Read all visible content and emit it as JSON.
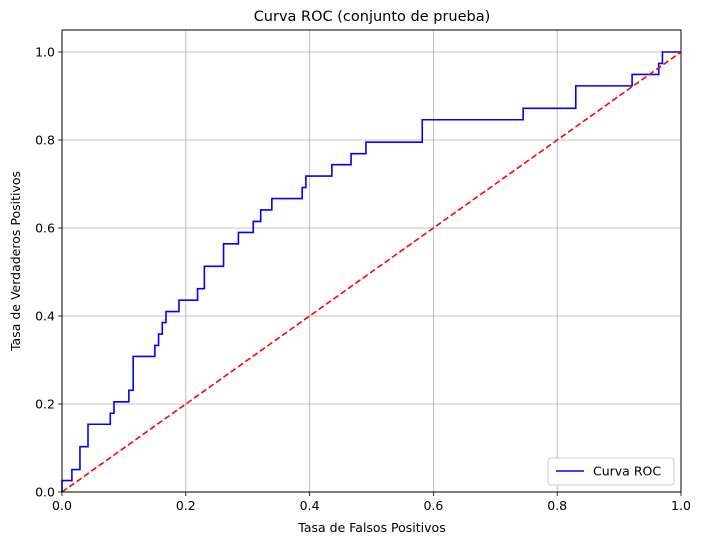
{
  "chart_data": {
    "type": "line",
    "title": "Curva ROC (conjunto de prueba)",
    "xlabel": "Tasa de Falsos Positivos",
    "ylabel": "Tasa de Verdaderos Positivos",
    "xlim": [
      0.0,
      1.0
    ],
    "ylim": [
      0.0,
      1.05
    ],
    "x_ticks": [
      "0.0",
      "0.2",
      "0.4",
      "0.6",
      "0.8",
      "1.0"
    ],
    "y_ticks": [
      "0.0",
      "0.2",
      "0.4",
      "0.6",
      "0.8",
      "1.0"
    ],
    "grid": true,
    "legend_position": "lower-right",
    "series": [
      {
        "name": "Curva ROC",
        "color": "#0000ff",
        "style": "solid",
        "step": true,
        "points": [
          [
            0.0,
            0.0
          ],
          [
            0.0,
            0.026
          ],
          [
            0.016,
            0.026
          ],
          [
            0.016,
            0.051
          ],
          [
            0.029,
            0.051
          ],
          [
            0.029,
            0.103
          ],
          [
            0.042,
            0.103
          ],
          [
            0.042,
            0.154
          ],
          [
            0.078,
            0.154
          ],
          [
            0.078,
            0.179
          ],
          [
            0.084,
            0.179
          ],
          [
            0.084,
            0.205
          ],
          [
            0.108,
            0.205
          ],
          [
            0.108,
            0.231
          ],
          [
            0.115,
            0.231
          ],
          [
            0.115,
            0.308
          ],
          [
            0.15,
            0.308
          ],
          [
            0.15,
            0.333
          ],
          [
            0.156,
            0.333
          ],
          [
            0.156,
            0.359
          ],
          [
            0.162,
            0.359
          ],
          [
            0.162,
            0.385
          ],
          [
            0.168,
            0.385
          ],
          [
            0.168,
            0.41
          ],
          [
            0.189,
            0.41
          ],
          [
            0.189,
            0.436
          ],
          [
            0.219,
            0.436
          ],
          [
            0.219,
            0.462
          ],
          [
            0.23,
            0.462
          ],
          [
            0.23,
            0.513
          ],
          [
            0.261,
            0.513
          ],
          [
            0.261,
            0.564
          ],
          [
            0.285,
            0.564
          ],
          [
            0.285,
            0.59
          ],
          [
            0.309,
            0.59
          ],
          [
            0.309,
            0.615
          ],
          [
            0.321,
            0.615
          ],
          [
            0.321,
            0.641
          ],
          [
            0.339,
            0.641
          ],
          [
            0.339,
            0.667
          ],
          [
            0.388,
            0.667
          ],
          [
            0.388,
            0.692
          ],
          [
            0.394,
            0.692
          ],
          [
            0.394,
            0.718
          ],
          [
            0.436,
            0.718
          ],
          [
            0.436,
            0.744
          ],
          [
            0.467,
            0.744
          ],
          [
            0.467,
            0.769
          ],
          [
            0.491,
            0.769
          ],
          [
            0.491,
            0.795
          ],
          [
            0.582,
            0.795
          ],
          [
            0.582,
            0.846
          ],
          [
            0.745,
            0.846
          ],
          [
            0.745,
            0.872
          ],
          [
            0.83,
            0.872
          ],
          [
            0.83,
            0.923
          ],
          [
            0.921,
            0.923
          ],
          [
            0.921,
            0.949
          ],
          [
            0.964,
            0.949
          ],
          [
            0.964,
            0.974
          ],
          [
            0.97,
            0.974
          ],
          [
            0.97,
            1.0
          ],
          [
            1.0,
            1.0
          ]
        ]
      },
      {
        "name": "",
        "color": "#ff0000",
        "style": "dashed",
        "points": [
          [
            0.0,
            0.0
          ],
          [
            1.0,
            1.0
          ]
        ]
      }
    ]
  }
}
